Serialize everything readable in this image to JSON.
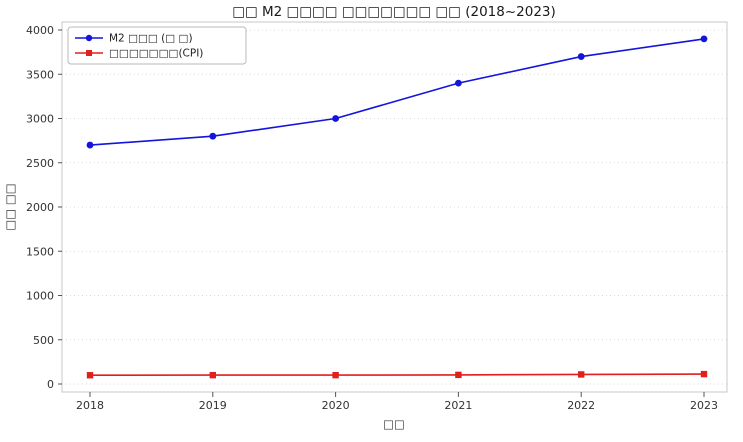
{
  "figure": {
    "background": "#ffffff",
    "plot_border_color": "#c8c8c8",
    "grid_color": "#d9d9d9",
    "tick_color": "#555555",
    "tick_label_color": "#333333",
    "title_color": "#1a1a1a"
  },
  "chart_data": {
    "type": "line",
    "title": "□□ M2 □□□□ □□□□□□□ □□ (2018~2023)",
    "xlabel": "□□",
    "ylabel": "□□ □□",
    "x": [
      2018,
      2019,
      2020,
      2021,
      2022,
      2023
    ],
    "series": [
      {
        "name": "M2 □□□ (□ □)",
        "values": [
          2700,
          2800,
          3000,
          3400,
          3700,
          3900
        ],
        "color": "#1414dd",
        "marker": "circle"
      },
      {
        "name": "□□□□□□□(CPI)",
        "values": [
          99,
          100,
          100,
          103,
          108,
          112
        ],
        "color": "#e01f1f",
        "marker": "square"
      }
    ],
    "ylim": [
      0,
      4000
    ],
    "yticks": [
      0,
      500,
      1000,
      1500,
      2000,
      2500,
      3000,
      3500,
      4000
    ],
    "xticks": [
      "2018",
      "2019",
      "2020",
      "2021",
      "2022",
      "2023"
    ],
    "grid": "horizontal-dotted",
    "legend_position": "upper-left"
  }
}
